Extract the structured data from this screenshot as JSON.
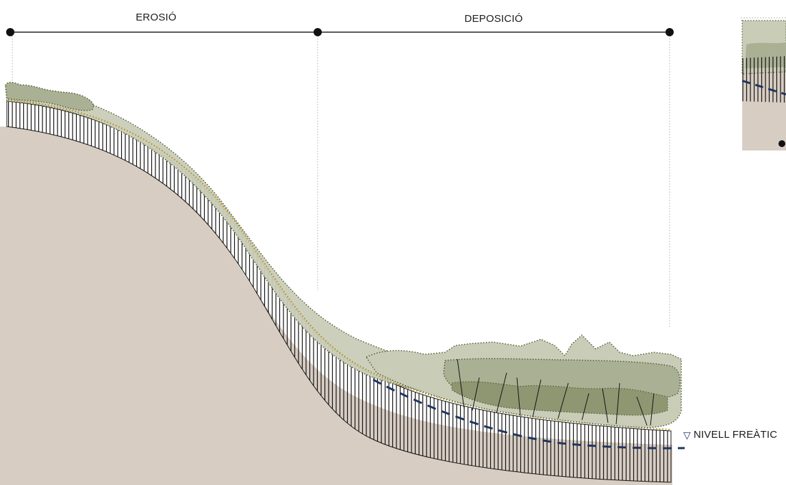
{
  "sections": {
    "erosion": "EROSIÓ",
    "deposition": "DEPOSICIÓ"
  },
  "water_table": {
    "symbol": "▽",
    "label": "NIVELL FREÀTIC"
  },
  "colors": {
    "bedrock": "#d8cdc3",
    "vegetation_light": "#c9ccb7",
    "vegetation_mid": "#aab094",
    "vegetation_dark": "#8f9672",
    "outline_dotted": "#4e5a32",
    "soil_top_dotted": "#b8860b",
    "water_table_line": "#1f3560",
    "scale_line": "#222222"
  }
}
